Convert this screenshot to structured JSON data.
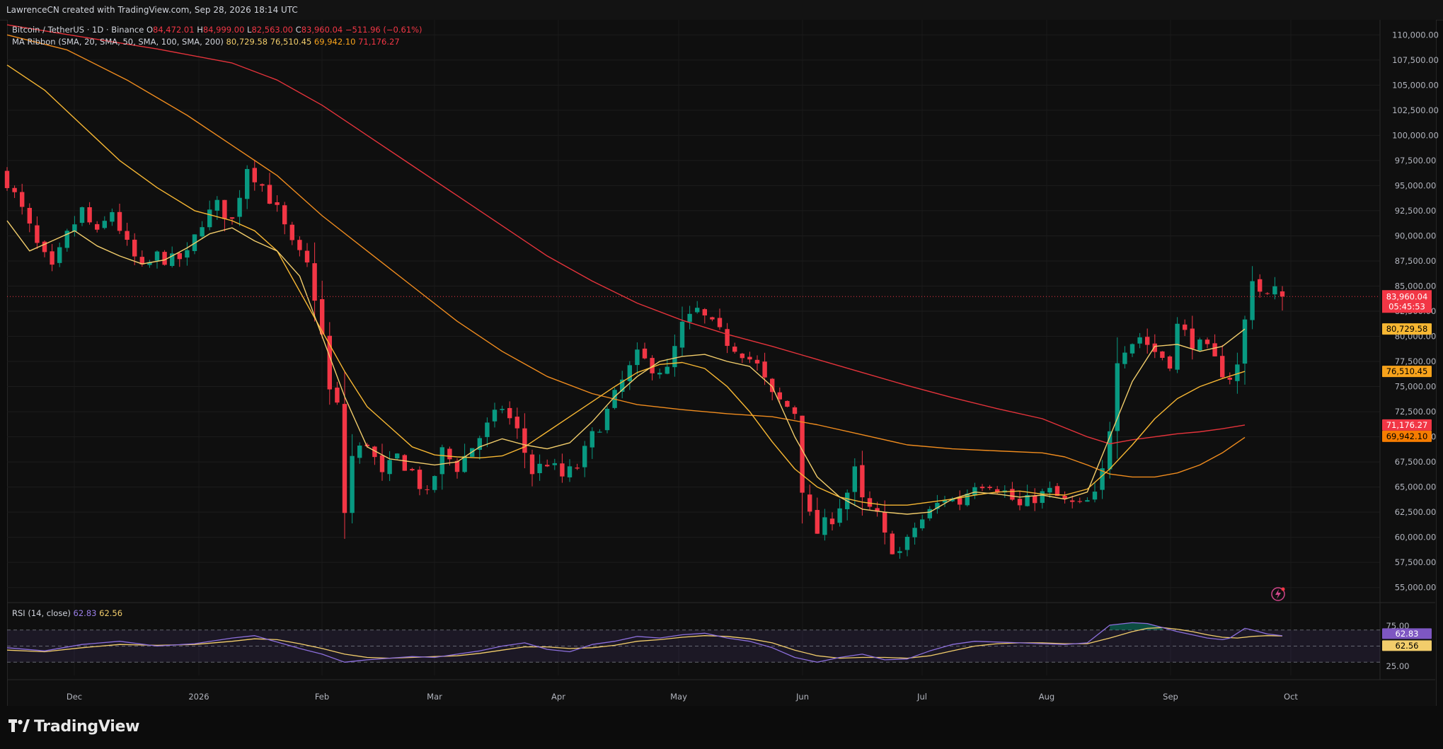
{
  "header": {
    "credit": "LawrenceCN created with TradingView.com, Sep 28, 2026 18:14 UTC"
  },
  "legend": {
    "symbol": "Bitcoin / TetherUS · 1D · Binance",
    "o_label": "O",
    "o_value": "84,472.01",
    "h_label": "H",
    "h_value": "84,999.00",
    "l_label": "L",
    "l_value": "82,563.00",
    "c_label": "C",
    "c_value": "83,960.04",
    "change": "−511.96 (−0.61%)",
    "ribbon_label": "MA Ribbon (SMA, 20, SMA, 50, SMA, 100, SMA, 200)",
    "ribbon_values": [
      "80,729.58",
      "76,510.45",
      "69,942.10",
      "71,176.27"
    ]
  },
  "rsi_legend": {
    "label": "RSI (14, close)",
    "rsi": "62.83",
    "ma": "62.56"
  },
  "colors": {
    "up": "#089981",
    "down": "#f23645",
    "sma20": "#f2cd6b",
    "sma50": "#f7b733",
    "sma100": "#f08c1e",
    "sma200": "#e5333b",
    "rsi": "#7e57c2",
    "rsi_ma": "#f2cd6b"
  },
  "brand": {
    "name": "TradingView",
    "logo_icon": "tradingview-logo-icon"
  },
  "chart_data": {
    "type": "candlestick",
    "symbol": "BTCUSDT",
    "timeframe": "1D",
    "x_labels": [
      "Dec",
      "2026",
      "Feb",
      "Mar",
      "Apr",
      "May",
      "Jun",
      "Jul",
      "Aug",
      "Sep",
      "Oct"
    ],
    "y_ticks": [
      "110,000.00",
      "107,500.00",
      "105,000.00",
      "102,500.00",
      "100,000.00",
      "97,500.00",
      "95,000.00",
      "92,500.00",
      "90,000.00",
      "87,500.00",
      "85,000.00",
      "82,500.00",
      "80,000.00",
      "77,500.00",
      "75,000.00",
      "72,500.00",
      "70,000.00",
      "67,500.00",
      "65,000.00",
      "62,500.00",
      "60,000.00",
      "57,500.00",
      "55,000.00"
    ],
    "ylim": [
      53500,
      111500
    ],
    "last_price": {
      "value": "83,960.04",
      "countdown": "05:45:53",
      "price": 83960.04
    },
    "price_badges": [
      {
        "value": "80,729.58",
        "price": 80729.58,
        "color": "#f7b733"
      },
      {
        "value": "76,510.45",
        "price": 76510.45,
        "color": "#f7a21b"
      },
      {
        "value": "71,176.27",
        "price": 71176.27,
        "color": "#f23645"
      },
      {
        "value": "69,942.10",
        "price": 69942.1,
        "color": "#f57c00"
      }
    ],
    "sma20_points": [
      [
        0,
        91500
      ],
      [
        3,
        88500
      ],
      [
        6,
        89500
      ],
      [
        9,
        90500
      ],
      [
        12,
        89000
      ],
      [
        15,
        88000
      ],
      [
        18,
        87200
      ],
      [
        21,
        87600
      ],
      [
        24,
        88800
      ],
      [
        27,
        90200
      ],
      [
        30,
        90800
      ],
      [
        33,
        89500
      ],
      [
        36,
        88500
      ],
      [
        39,
        86000
      ],
      [
        42,
        80000
      ],
      [
        45,
        74000
      ],
      [
        48,
        69000
      ],
      [
        51,
        67800
      ],
      [
        54,
        67500
      ],
      [
        57,
        67200
      ],
      [
        60,
        67500
      ],
      [
        63,
        69000
      ],
      [
        66,
        69800
      ],
      [
        69,
        69200
      ],
      [
        72,
        68800
      ],
      [
        75,
        69400
      ],
      [
        78,
        71500
      ],
      [
        81,
        74000
      ],
      [
        84,
        76000
      ],
      [
        87,
        77500
      ],
      [
        90,
        78000
      ],
      [
        93,
        78200
      ],
      [
        96,
        77500
      ],
      [
        99,
        77000
      ],
      [
        102,
        75000
      ],
      [
        105,
        70000
      ],
      [
        108,
        66000
      ],
      [
        111,
        64000
      ],
      [
        114,
        62800
      ],
      [
        117,
        62500
      ],
      [
        120,
        62300
      ],
      [
        123,
        62500
      ],
      [
        126,
        63800
      ],
      [
        129,
        64500
      ],
      [
        132,
        64300
      ],
      [
        135,
        64000
      ],
      [
        138,
        64200
      ],
      [
        141,
        63800
      ],
      [
        144,
        64500
      ],
      [
        147,
        70000
      ],
      [
        150,
        75500
      ],
      [
        153,
        79000
      ],
      [
        156,
        79200
      ],
      [
        159,
        78500
      ],
      [
        162,
        79000
      ],
      [
        165,
        80729.58
      ]
    ],
    "sma50_points": [
      [
        0,
        107000
      ],
      [
        5,
        104500
      ],
      [
        10,
        101000
      ],
      [
        15,
        97500
      ],
      [
        20,
        94800
      ],
      [
        25,
        92500
      ],
      [
        30,
        91500
      ],
      [
        33,
        90500
      ],
      [
        36,
        88500
      ],
      [
        39,
        84500
      ],
      [
        42,
        80500
      ],
      [
        45,
        76500
      ],
      [
        48,
        73000
      ],
      [
        51,
        71000
      ],
      [
        54,
        69000
      ],
      [
        57,
        68200
      ],
      [
        60,
        68000
      ],
      [
        63,
        67900
      ],
      [
        66,
        68100
      ],
      [
        69,
        69000
      ],
      [
        72,
        70500
      ],
      [
        75,
        72000
      ],
      [
        78,
        73500
      ],
      [
        81,
        75000
      ],
      [
        84,
        76400
      ],
      [
        87,
        77200
      ],
      [
        90,
        77400
      ],
      [
        93,
        76800
      ],
      [
        96,
        75000
      ],
      [
        99,
        72500
      ],
      [
        102,
        69500
      ],
      [
        105,
        66800
      ],
      [
        108,
        65000
      ],
      [
        111,
        64000
      ],
      [
        114,
        63500
      ],
      [
        117,
        63200
      ],
      [
        120,
        63200
      ],
      [
        123,
        63500
      ],
      [
        126,
        63800
      ],
      [
        129,
        64200
      ],
      [
        132,
        64500
      ],
      [
        135,
        64600
      ],
      [
        138,
        64300
      ],
      [
        141,
        64200
      ],
      [
        144,
        64800
      ],
      [
        147,
        66800
      ],
      [
        150,
        69200
      ],
      [
        153,
        71800
      ],
      [
        156,
        73800
      ],
      [
        159,
        75000
      ],
      [
        162,
        75800
      ],
      [
        165,
        76510.45
      ]
    ],
    "sma100_points": [
      [
        0,
        110000
      ],
      [
        8,
        108500
      ],
      [
        16,
        105500
      ],
      [
        24,
        102000
      ],
      [
        30,
        99000
      ],
      [
        36,
        96000
      ],
      [
        42,
        92000
      ],
      [
        48,
        88500
      ],
      [
        54,
        85000
      ],
      [
        60,
        81500
      ],
      [
        66,
        78500
      ],
      [
        72,
        76000
      ],
      [
        78,
        74300
      ],
      [
        84,
        73200
      ],
      [
        90,
        72700
      ],
      [
        96,
        72300
      ],
      [
        102,
        72000
      ],
      [
        108,
        71200
      ],
      [
        114,
        70200
      ],
      [
        120,
        69200
      ],
      [
        126,
        68800
      ],
      [
        132,
        68600
      ],
      [
        138,
        68400
      ],
      [
        141,
        68000
      ],
      [
        144,
        67200
      ],
      [
        147,
        66300
      ],
      [
        150,
        66000
      ],
      [
        153,
        66000
      ],
      [
        156,
        66400
      ],
      [
        159,
        67200
      ],
      [
        162,
        68400
      ],
      [
        165,
        69942.1
      ]
    ],
    "sma200_points": [
      [
        0,
        111000
      ],
      [
        10,
        109800
      ],
      [
        20,
        108600
      ],
      [
        30,
        107200
      ],
      [
        36,
        105500
      ],
      [
        42,
        103000
      ],
      [
        48,
        100000
      ],
      [
        54,
        97000
      ],
      [
        60,
        94000
      ],
      [
        66,
        91000
      ],
      [
        72,
        88000
      ],
      [
        78,
        85500
      ],
      [
        84,
        83300
      ],
      [
        90,
        81600
      ],
      [
        96,
        80200
      ],
      [
        102,
        79000
      ],
      [
        108,
        77700
      ],
      [
        114,
        76400
      ],
      [
        120,
        75100
      ],
      [
        126,
        73900
      ],
      [
        132,
        72800
      ],
      [
        138,
        71800
      ],
      [
        144,
        70000
      ],
      [
        147,
        69300
      ],
      [
        150,
        69700
      ],
      [
        153,
        70000
      ],
      [
        156,
        70300
      ],
      [
        159,
        70500
      ],
      [
        162,
        70800
      ],
      [
        165,
        71176.27
      ]
    ],
    "close_anchors": [
      [
        0,
        95500
      ],
      [
        2,
        92500
      ],
      [
        4,
        89000
      ],
      [
        6,
        86500
      ],
      [
        8,
        90000
      ],
      [
        10,
        92500
      ],
      [
        12,
        90000
      ],
      [
        14,
        92500
      ],
      [
        16,
        89000
      ],
      [
        18,
        86500
      ],
      [
        20,
        88000
      ],
      [
        22,
        87500
      ],
      [
        24,
        88000
      ],
      [
        26,
        91500
      ],
      [
        28,
        93000
      ],
      [
        30,
        91500
      ],
      [
        32,
        97000
      ],
      [
        34,
        95000
      ],
      [
        36,
        92500
      ],
      [
        38,
        89000
      ],
      [
        39,
        88000
      ],
      [
        40,
        87000
      ],
      [
        41,
        84000
      ],
      [
        42,
        80000
      ],
      [
        43,
        74500
      ],
      [
        44,
        73000
      ],
      [
        45,
        62500
      ],
      [
        46,
        68000
      ],
      [
        48,
        69500
      ],
      [
        50,
        66000
      ],
      [
        52,
        68000
      ],
      [
        54,
        66500
      ],
      [
        56,
        64000
      ],
      [
        58,
        68500
      ],
      [
        60,
        67000
      ],
      [
        62,
        69000
      ],
      [
        64,
        71000
      ],
      [
        66,
        73000
      ],
      [
        68,
        70500
      ],
      [
        70,
        66500
      ],
      [
        72,
        67500
      ],
      [
        74,
        66000
      ],
      [
        76,
        67000
      ],
      [
        78,
        70000
      ],
      [
        80,
        72500
      ],
      [
        82,
        75500
      ],
      [
        84,
        78000
      ],
      [
        86,
        77000
      ],
      [
        88,
        76500
      ],
      [
        90,
        81000
      ],
      [
        92,
        82500
      ],
      [
        94,
        81000
      ],
      [
        96,
        79500
      ],
      [
        98,
        78500
      ],
      [
        100,
        77000
      ],
      [
        102,
        74000
      ],
      [
        104,
        73000
      ],
      [
        105,
        72500
      ],
      [
        106,
        65000
      ],
      [
        107,
        62000
      ],
      [
        108,
        60500
      ],
      [
        110,
        62000
      ],
      [
        112,
        64500
      ],
      [
        113,
        66500
      ],
      [
        114,
        63500
      ],
      [
        116,
        62000
      ],
      [
        117,
        60000
      ],
      [
        118,
        59000
      ],
      [
        119,
        58500
      ],
      [
        120,
        59500
      ],
      [
        121,
        61000
      ],
      [
        123,
        62500
      ],
      [
        125,
        64000
      ],
      [
        127,
        63500
      ],
      [
        129,
        65500
      ],
      [
        131,
        65500
      ],
      [
        133,
        64500
      ],
      [
        135,
        63000
      ],
      [
        137,
        64000
      ],
      [
        139,
        64500
      ],
      [
        141,
        63500
      ],
      [
        143,
        63000
      ],
      [
        145,
        64000
      ],
      [
        146,
        66500
      ],
      [
        147,
        71000
      ],
      [
        148,
        78000
      ],
      [
        149,
        79000
      ],
      [
        151,
        80000
      ],
      [
        153,
        78500
      ],
      [
        155,
        77500
      ],
      [
        156,
        81000
      ],
      [
        158,
        79500
      ],
      [
        160,
        78500
      ],
      [
        162,
        76500
      ],
      [
        163,
        76000
      ],
      [
        164,
        77000
      ],
      [
        165,
        81500
      ],
      [
        166,
        86000
      ],
      [
        167,
        84500
      ],
      [
        168,
        84000
      ],
      [
        169,
        84472.01
      ],
      [
        170,
        83960.04
      ]
    ],
    "rsi_y_ticks": [
      "75.00",
      "25.00"
    ],
    "rsi_levels": [
      70,
      50,
      30
    ],
    "rsi_points": [
      [
        0,
        48
      ],
      [
        5,
        44
      ],
      [
        10,
        52
      ],
      [
        15,
        56
      ],
      [
        20,
        50
      ],
      [
        25,
        53
      ],
      [
        30,
        60
      ],
      [
        33,
        63
      ],
      [
        36,
        55
      ],
      [
        39,
        47
      ],
      [
        42,
        40
      ],
      [
        45,
        30
      ],
      [
        48,
        33
      ],
      [
        51,
        35
      ],
      [
        54,
        37
      ],
      [
        57,
        36
      ],
      [
        60,
        40
      ],
      [
        63,
        44
      ],
      [
        66,
        50
      ],
      [
        69,
        54
      ],
      [
        72,
        46
      ],
      [
        75,
        43
      ],
      [
        78,
        52
      ],
      [
        81,
        56
      ],
      [
        84,
        62
      ],
      [
        87,
        60
      ],
      [
        90,
        64
      ],
      [
        93,
        66
      ],
      [
        96,
        60
      ],
      [
        99,
        56
      ],
      [
        102,
        48
      ],
      [
        105,
        36
      ],
      [
        108,
        30
      ],
      [
        111,
        36
      ],
      [
        114,
        40
      ],
      [
        117,
        33
      ],
      [
        120,
        34
      ],
      [
        123,
        44
      ],
      [
        126,
        52
      ],
      [
        129,
        56
      ],
      [
        132,
        55
      ],
      [
        135,
        54
      ],
      [
        138,
        53
      ],
      [
        141,
        52
      ],
      [
        144,
        54
      ],
      [
        147,
        76
      ],
      [
        150,
        79
      ],
      [
        152,
        78
      ],
      [
        154,
        73
      ],
      [
        156,
        68
      ],
      [
        158,
        64
      ],
      [
        160,
        60
      ],
      [
        162,
        58
      ],
      [
        163,
        60
      ],
      [
        164,
        66
      ],
      [
        165,
        72
      ],
      [
        166,
        70
      ],
      [
        168,
        65
      ],
      [
        170,
        62.83
      ]
    ],
    "rsi_ma_points": [
      [
        0,
        45
      ],
      [
        5,
        43
      ],
      [
        10,
        48
      ],
      [
        15,
        52
      ],
      [
        20,
        51
      ],
      [
        25,
        52
      ],
      [
        30,
        56
      ],
      [
        33,
        59
      ],
      [
        36,
        58
      ],
      [
        39,
        53
      ],
      [
        42,
        47
      ],
      [
        45,
        40
      ],
      [
        48,
        36
      ],
      [
        51,
        35
      ],
      [
        54,
        36
      ],
      [
        57,
        37
      ],
      [
        60,
        38
      ],
      [
        63,
        41
      ],
      [
        66,
        45
      ],
      [
        69,
        49
      ],
      [
        72,
        49
      ],
      [
        75,
        47
      ],
      [
        78,
        48
      ],
      [
        81,
        51
      ],
      [
        84,
        56
      ],
      [
        87,
        58
      ],
      [
        90,
        61
      ],
      [
        93,
        63
      ],
      [
        96,
        62
      ],
      [
        99,
        59
      ],
      [
        102,
        54
      ],
      [
        105,
        45
      ],
      [
        108,
        38
      ],
      [
        111,
        35
      ],
      [
        114,
        36
      ],
      [
        117,
        36
      ],
      [
        120,
        35
      ],
      [
        123,
        38
      ],
      [
        126,
        44
      ],
      [
        129,
        50
      ],
      [
        132,
        53
      ],
      [
        135,
        54
      ],
      [
        138,
        54
      ],
      [
        141,
        53
      ],
      [
        144,
        53
      ],
      [
        147,
        60
      ],
      [
        150,
        68
      ],
      [
        152,
        72
      ],
      [
        154,
        73
      ],
      [
        156,
        71
      ],
      [
        158,
        68
      ],
      [
        160,
        64
      ],
      [
        162,
        61
      ],
      [
        164,
        60
      ],
      [
        166,
        62
      ],
      [
        168,
        63
      ],
      [
        170,
        62.56
      ]
    ],
    "rsi_badges": [
      {
        "value": "62.83",
        "color": "#7e57c2"
      },
      {
        "value": "62.56",
        "color": "#f2cd6b"
      }
    ]
  }
}
